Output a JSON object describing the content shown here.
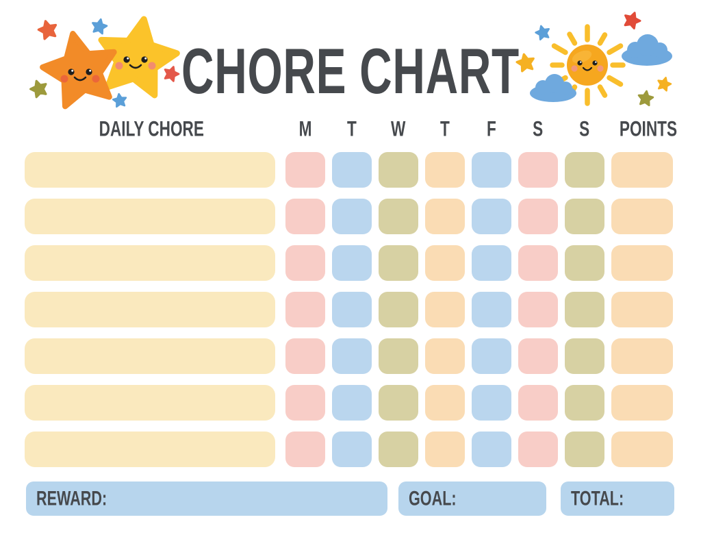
{
  "title": "CHORE CHART",
  "table": {
    "chore_column_header": "DAILY CHORE",
    "day_headers": [
      "M",
      "T",
      "W",
      "T",
      "F",
      "S",
      "S"
    ],
    "day_names": [
      "mon",
      "tue",
      "wed",
      "thu",
      "fri",
      "sat",
      "sun"
    ],
    "points_header": "POINTS",
    "rows": 7,
    "cells_are_blank": true
  },
  "footer": {
    "reward_label": "REWARD:",
    "goal_label": "GOAL:",
    "total_label": "TOTAL:"
  },
  "palette": {
    "text": "#46494D",
    "chore_cell": "#FAE9BE",
    "day_cell_colors": [
      "#F8CDC7",
      "#BAD6EE",
      "#D7D1A3",
      "#FADCB4",
      "#BAD6EE",
      "#F8CDC7",
      "#D7D1A3"
    ],
    "points_cell": "#FADCB4",
    "footer_box": "#B7D5ED"
  },
  "decorations": {
    "left": "two smiling stars with sparkle stars",
    "right": "smiling sun with clouds and sparkle stars",
    "orange_star": "#F28B28",
    "yellow_star": "#FBC32A",
    "sun_body": "#F6A71F",
    "sun_rays": "#F9BE2C",
    "cloud": "#6FA9DE",
    "sparkle_red": "#E14B38",
    "sparkle_blue": "#5B9FD8",
    "sparkle_olive": "#9D9A3C",
    "sparkle_yellow": "#F5B122"
  }
}
